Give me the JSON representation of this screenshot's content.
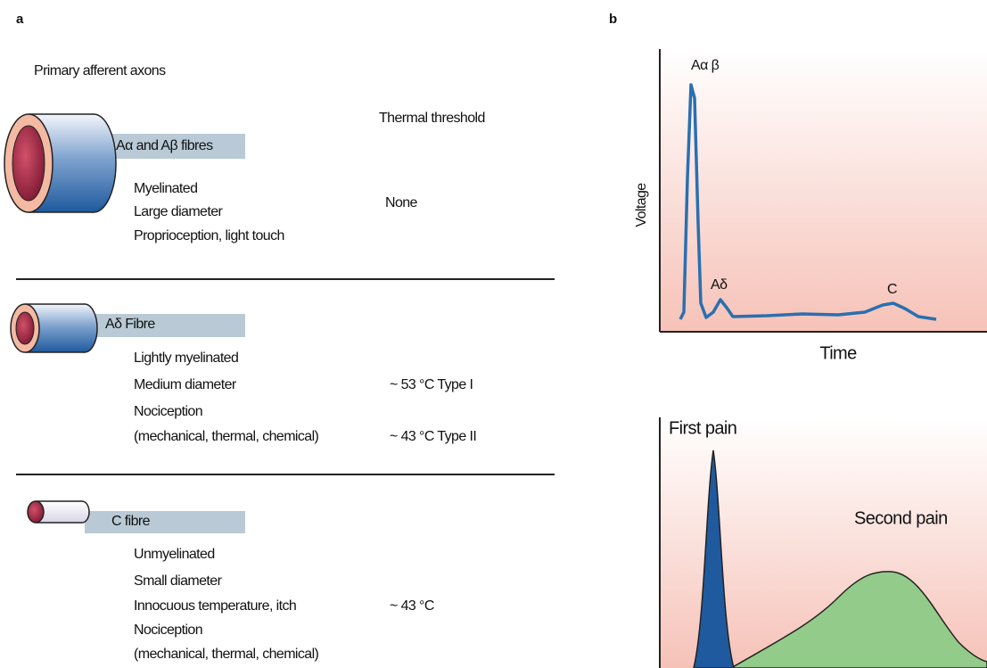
{
  "panel_a": {
    "label": "a",
    "title": "Primary afferent axons",
    "threshold_header": "Thermal threshold",
    "fibres": [
      {
        "name": "Aα and Aβ fibres",
        "properties": [
          "Myelinated",
          "Large diameter",
          "Proprioception, light touch"
        ],
        "thresholds": [
          "None"
        ]
      },
      {
        "name": "Aδ Fibre",
        "properties": [
          "Lightly myelinated",
          "Medium diameter",
          "Nociception",
          "(mechanical, thermal, chemical)"
        ],
        "thresholds": [
          "~ 53 °C Type I",
          "~ 43 °C Type II"
        ]
      },
      {
        "name": "C fibre",
        "properties": [
          "Unmyelinated",
          "Small diameter",
          "Innocuous temperature, itch",
          "Nociception",
          "(mechanical, thermal, chemical)"
        ],
        "thresholds": [
          "~ 43 °C"
        ]
      }
    ]
  },
  "panel_b": {
    "label": "b",
    "voltage_plot": {
      "y_label": "Voltage",
      "x_label": "Time",
      "peaks": [
        "Aα β",
        "Aδ",
        "C"
      ]
    },
    "pain_plot": {
      "labels": [
        "First pain",
        "Second pain"
      ]
    }
  }
}
